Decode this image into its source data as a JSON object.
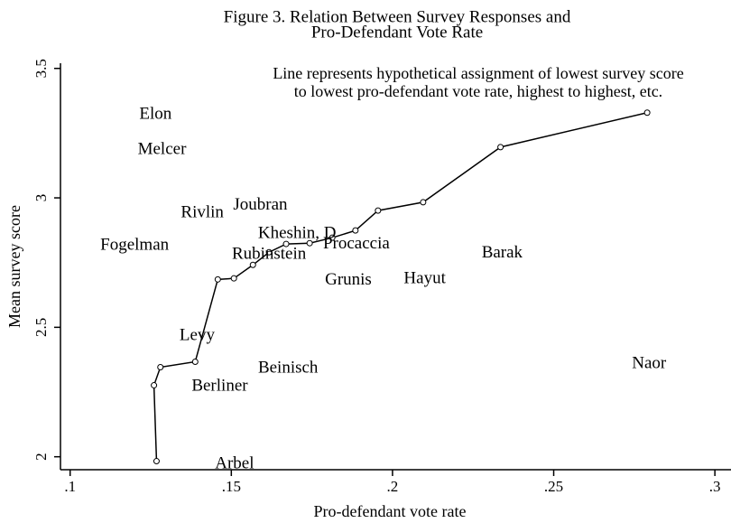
{
  "chart_data": {
    "type": "scatter",
    "title": [
      "Figure 3. Relation Between Survey Responses and",
      "Pro-Defendant Vote Rate"
    ],
    "annotation": [
      "Line represents hypothetical assignment of lowest survey score",
      "to lowest pro-defendant vote rate, highest to highest, etc."
    ],
    "xlabel": "Pro-defendant vote rate",
    "ylabel": "Mean survey score",
    "xlim": [
      0.097,
      0.305
    ],
    "ylim": [
      1.95,
      3.52
    ],
    "xticks": [
      {
        "value": 0.1,
        "label": ".1"
      },
      {
        "value": 0.15,
        "label": ".15"
      },
      {
        "value": 0.2,
        "label": ".2"
      },
      {
        "value": 0.25,
        "label": ".25"
      },
      {
        "value": 0.3,
        "label": ".3"
      }
    ],
    "yticks": [
      2,
      2.5,
      3,
      3.5
    ],
    "points": {
      "labels": [
        "Elon",
        "Melcer",
        "Rivlin",
        "Joubran",
        "Fogelman",
        "Kheshin, D",
        "Procaccia",
        "Rubinstein",
        "Barak",
        "Grunis",
        "Hayut",
        "Levy",
        "Beinisch",
        "Berliner",
        "Naor",
        "Arbel"
      ],
      "x": [
        0.1265,
        0.1285,
        0.141,
        0.159,
        0.12,
        0.1704,
        0.1888,
        0.1617,
        0.234,
        0.1863,
        0.21,
        0.1394,
        0.1676,
        0.1464,
        0.2796,
        0.151
      ],
      "y": [
        3.32,
        3.185,
        2.94,
        2.97,
        2.815,
        2.86,
        2.82,
        2.78,
        2.785,
        2.68,
        2.685,
        2.465,
        2.34,
        2.27,
        2.357,
        1.97
      ]
    },
    "line": {
      "x": [
        0.1268,
        0.126,
        0.128,
        0.1388,
        0.1458,
        0.1508,
        0.1567,
        0.1617,
        0.167,
        0.1743,
        0.1813,
        0.1885,
        0.1955,
        0.2095,
        0.2335,
        0.279
      ],
      "y": [
        1.983,
        2.276,
        2.346,
        2.367,
        2.685,
        2.689,
        2.741,
        2.79,
        2.822,
        2.825,
        2.846,
        2.874,
        2.951,
        2.983,
        3.196,
        3.329
      ]
    },
    "color": "#000000"
  }
}
